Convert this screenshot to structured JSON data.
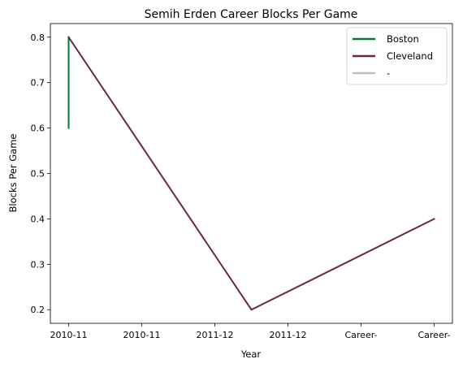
{
  "chart_data": {
    "type": "line",
    "title": "Semih Erden Career Blocks Per Game",
    "xlabel": "Year",
    "ylabel": "Blocks Per Game",
    "categories": [
      "2010-11",
      "2010-11",
      "2011-12",
      "2011-12",
      "Career-",
      "Career-"
    ],
    "ylim": [
      0.17,
      0.83
    ],
    "yticks": [
      0.2,
      0.3,
      0.4,
      0.5,
      0.6,
      0.7,
      0.8
    ],
    "grid": false,
    "legend_position": "top-right",
    "series": [
      {
        "name": "Boston",
        "color": "#007A33",
        "points": [
          {
            "x": 0,
            "y": 0.6
          },
          {
            "x": 0,
            "y": 0.8
          }
        ]
      },
      {
        "name": "Cleveland",
        "color": "#6F263D",
        "points": [
          {
            "x": 0,
            "y": 0.8
          },
          {
            "x": 2.5,
            "y": 0.2
          },
          {
            "x": 5,
            "y": 0.4
          }
        ]
      },
      {
        "name": "-",
        "color": "#BEBEBE",
        "points": []
      }
    ]
  }
}
